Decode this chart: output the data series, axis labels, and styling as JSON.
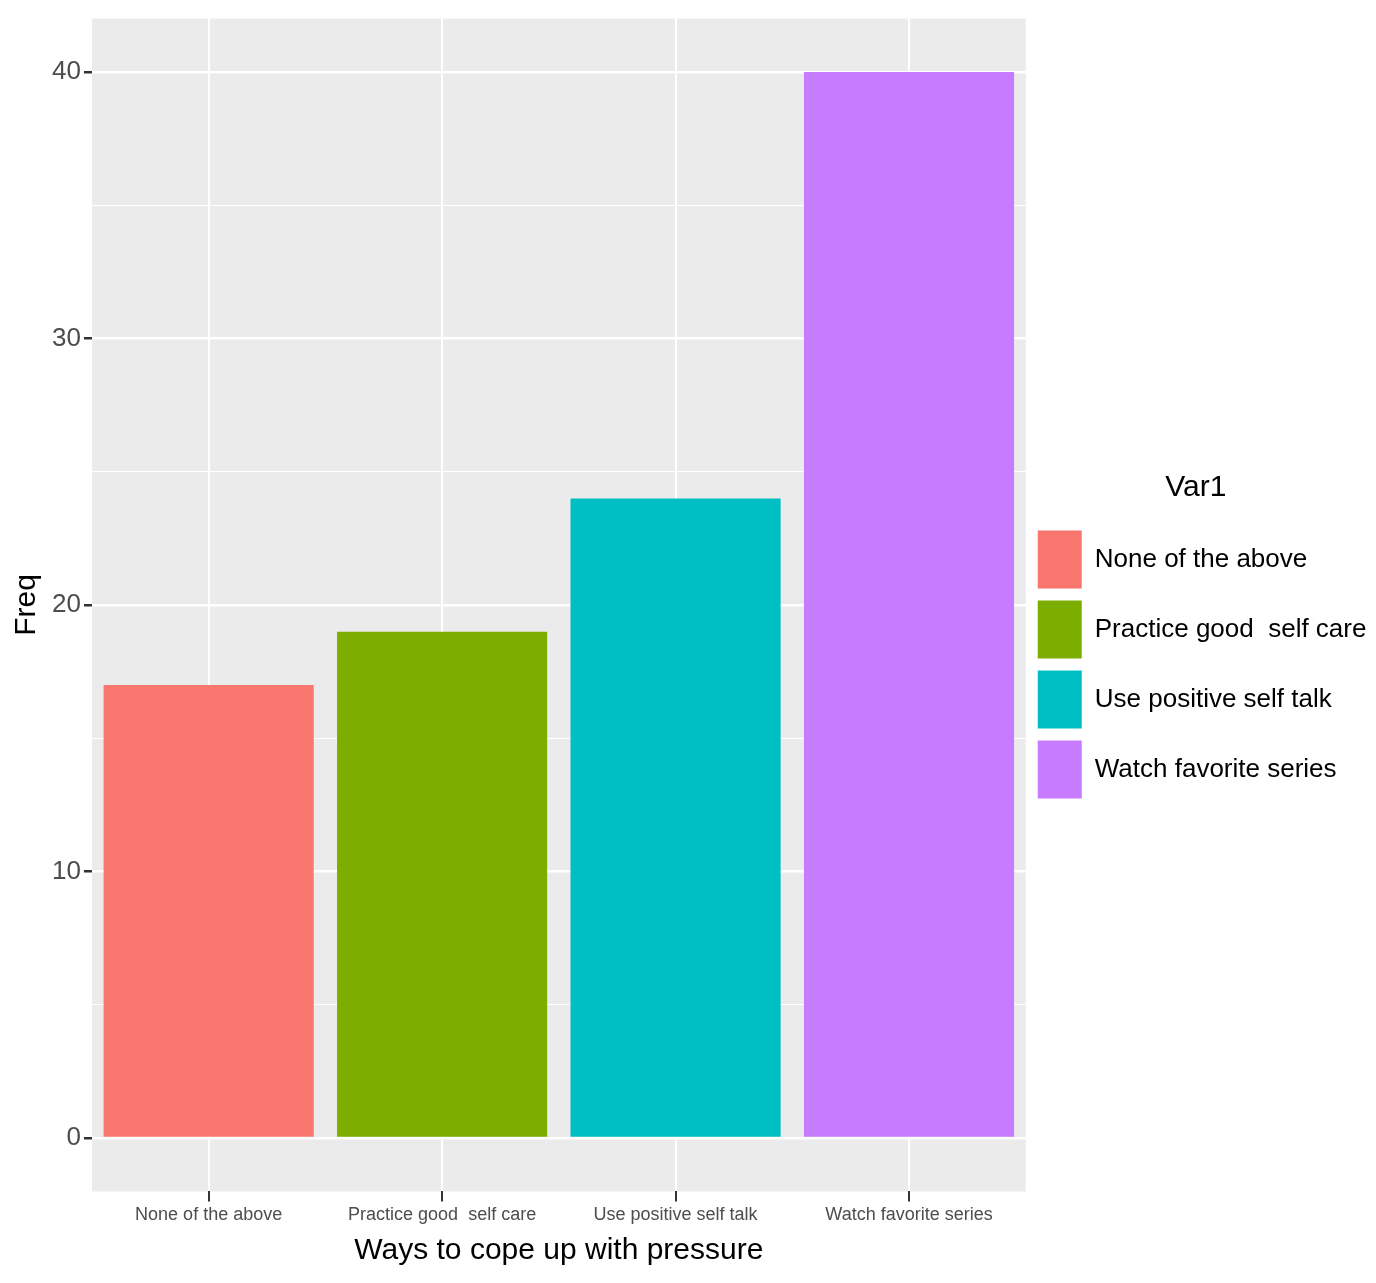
{
  "chart_data": {
    "type": "bar",
    "xlabel": "Ways to cope up with pressure",
    "ylabel": "Freq",
    "legend_title": "Var1",
    "categories": [
      "None of the above",
      "Practice good  self care",
      "Use positive self talk",
      "Watch favorite series"
    ],
    "series": [
      {
        "name": "None of the above",
        "color": "#f8766d",
        "values": [
          17,
          null,
          null,
          null
        ]
      },
      {
        "name": "Practice good  self care",
        "color": "#7cae00",
        "values": [
          null,
          19,
          null,
          null
        ]
      },
      {
        "name": "Use positive self talk",
        "color": "#00bfc4",
        "values": [
          null,
          null,
          24,
          null
        ]
      },
      {
        "name": "Watch favorite series",
        "color": "#c77cff",
        "values": [
          null,
          null,
          null,
          40
        ]
      }
    ],
    "ylim": [
      -2,
      42
    ],
    "yticks": [
      0,
      {
        "value": 5,
        "label": null
      },
      10,
      {
        "value": 15,
        "label": null
      },
      20,
      {
        "value": 25,
        "label": null
      },
      30,
      {
        "value": 35,
        "label": null
      },
      40
    ],
    "grid": true,
    "legend": "right"
  }
}
